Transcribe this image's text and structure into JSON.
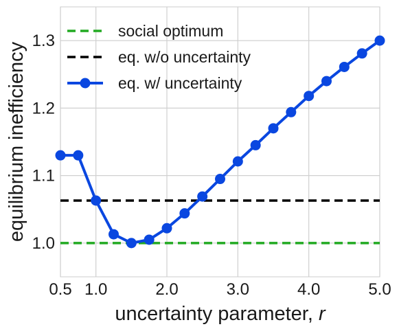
{
  "chart_data": {
    "type": "line",
    "title": "",
    "xlabel": "uncertainty parameter, ",
    "xlabel_italic": "r",
    "ylabel": "equilibrium inefficiency",
    "xlim": [
      0.5,
      5.0
    ],
    "ylim": [
      0.95,
      1.35
    ],
    "x_ticks": [
      0.5,
      1.0,
      2.0,
      3.0,
      4.0,
      5.0
    ],
    "x_tick_labels": [
      "0.5",
      "1.0",
      "2.0",
      "3.0",
      "4.0",
      "5.0"
    ],
    "y_ticks": [
      1.0,
      1.1,
      1.2,
      1.3
    ],
    "y_tick_labels": [
      "1.0",
      "1.1",
      "1.2",
      "1.3"
    ],
    "grid": true,
    "legend_position": "top-left",
    "series": [
      {
        "name": "social optimum",
        "style": "dashed",
        "color": "#22aa22",
        "x": [
          0.5,
          5.0
        ],
        "y": [
          1.0,
          1.0
        ]
      },
      {
        "name": "eq. w/o uncertainty",
        "style": "dashed",
        "color": "#000000",
        "x": [
          0.5,
          5.0
        ],
        "y": [
          1.063,
          1.063
        ]
      },
      {
        "name": "eq. w/ uncertainty",
        "style": "solid-markers",
        "color": "#0a47e0",
        "x": [
          0.5,
          0.75,
          1.0,
          1.25,
          1.5,
          1.75,
          2.0,
          2.25,
          2.5,
          2.75,
          3.0,
          3.25,
          3.5,
          3.75,
          4.0,
          4.25,
          4.5,
          4.75,
          5.0
        ],
        "y": [
          1.13,
          1.13,
          1.063,
          1.013,
          1.0,
          1.005,
          1.022,
          1.044,
          1.069,
          1.095,
          1.121,
          1.145,
          1.17,
          1.194,
          1.218,
          1.24,
          1.261,
          1.281,
          1.3
        ]
      }
    ]
  }
}
